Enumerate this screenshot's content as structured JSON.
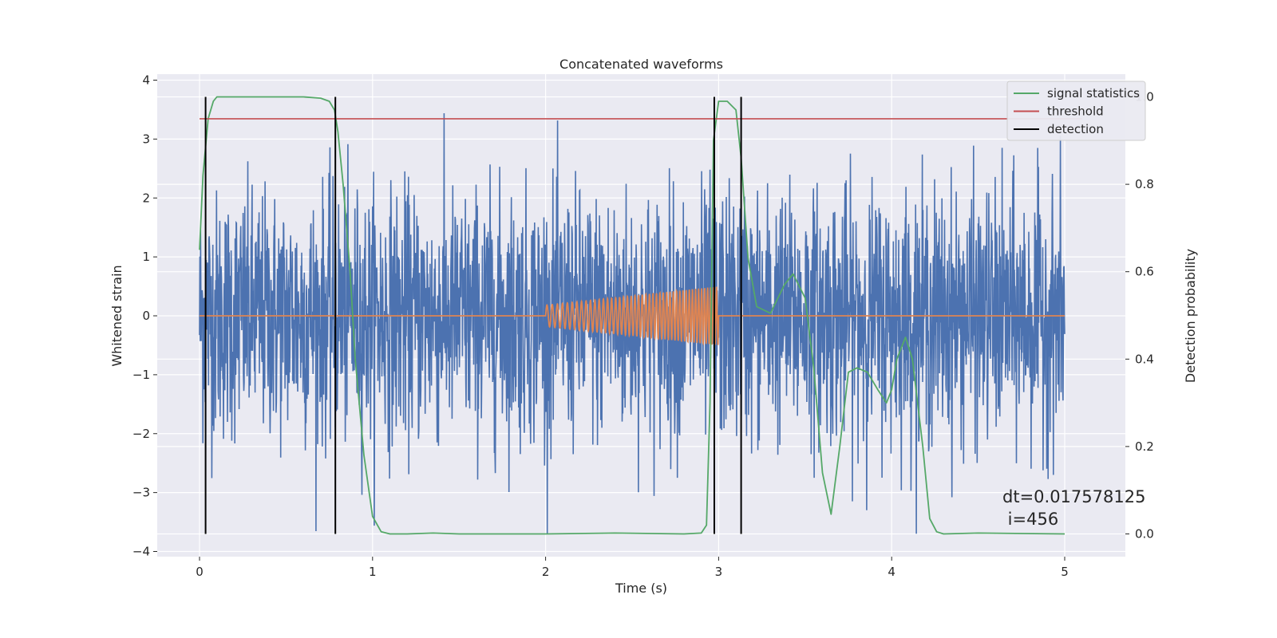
{
  "chart_data": {
    "type": "line",
    "title": "Concatenated waveforms",
    "xlabel": "Time (s)",
    "ylabel_left": "Whitened strain",
    "ylabel_right": "Detection probability",
    "xlim": [
      -0.25,
      5.35
    ],
    "ylim_left": [
      -4.05,
      4.05
    ],
    "ylim_right": [
      -0.045,
      1.045
    ],
    "x_ticks": [
      0,
      1,
      2,
      3,
      4,
      5
    ],
    "y_ticks_left": [
      -4,
      -3,
      -2,
      -1,
      0,
      1,
      2,
      3,
      4
    ],
    "y_ticks_right": [
      0.0,
      0.2,
      0.4,
      0.6,
      0.8,
      1.0
    ],
    "y_tick_labels_left": [
      "−4",
      "−3",
      "−2",
      "−1",
      "0",
      "1",
      "2",
      "3",
      "4"
    ],
    "y_tick_labels_right": [
      "0.0",
      "0.2",
      "0.4",
      "0.6",
      "0.8",
      "1.0"
    ],
    "grid": true,
    "legend_position": "top-right",
    "legend": [
      "signal statistics",
      "threshold",
      "detection"
    ],
    "series": [
      {
        "name": "strain",
        "axis": "left",
        "color": "#4c72b0",
        "description_range": [
          0,
          5
        ],
        "approx_extent": [
          -3.7,
          3.45
        ]
      },
      {
        "name": "injection",
        "axis": "left",
        "color": "#dd8452",
        "segments": [
          [
            0,
            2,
            0
          ],
          [
            2,
            3,
            0
          ],
          [
            3,
            5,
            0
          ]
        ],
        "chirp": {
          "start": 2.0,
          "end": 3.0,
          "amp_start": 0.18,
          "amp_end": 0.5
        }
      },
      {
        "name": "signal statistics",
        "axis": "right",
        "color": "#55a868",
        "x": [
          0.0,
          0.02,
          0.05,
          0.08,
          0.1,
          0.2,
          0.4,
          0.6,
          0.7,
          0.75,
          0.78,
          0.8,
          0.83,
          0.87,
          0.9,
          0.95,
          1.0,
          1.05,
          1.1,
          1.2,
          1.35,
          1.5,
          2.0,
          2.4,
          2.8,
          2.9,
          2.93,
          2.95,
          2.97,
          3.0,
          3.05,
          3.1,
          3.13,
          3.17,
          3.22,
          3.3,
          3.38,
          3.43,
          3.5,
          3.55,
          3.6,
          3.65,
          3.7,
          3.75,
          3.8,
          3.86,
          3.92,
          3.97,
          4.0,
          4.03,
          4.08,
          4.12,
          4.18,
          4.22,
          4.26,
          4.3,
          4.5,
          5.0
        ],
        "values": [
          0.65,
          0.82,
          0.95,
          0.99,
          1.0,
          1.0,
          1.0,
          1.0,
          0.997,
          0.99,
          0.97,
          0.92,
          0.8,
          0.6,
          0.4,
          0.18,
          0.04,
          0.005,
          0.0,
          0.0,
          0.002,
          0.0,
          0.0,
          0.002,
          0.0,
          0.002,
          0.02,
          0.3,
          0.9,
          0.99,
          0.99,
          0.97,
          0.86,
          0.63,
          0.52,
          0.505,
          0.57,
          0.595,
          0.54,
          0.38,
          0.14,
          0.045,
          0.2,
          0.37,
          0.38,
          0.37,
          0.33,
          0.3,
          0.33,
          0.4,
          0.45,
          0.4,
          0.2,
          0.035,
          0.005,
          0.0,
          0.002,
          0.0
        ]
      },
      {
        "name": "threshold",
        "axis": "right",
        "color": "#c44e52",
        "x": [
          0,
          5.1
        ],
        "values": [
          0.95,
          0.95
        ]
      },
      {
        "name": "detection",
        "axis": "right",
        "color": "#000000",
        "x_positions": [
          0.035,
          0.785,
          2.975,
          3.13
        ],
        "y_range": [
          0,
          1
        ]
      }
    ],
    "annotation": [
      "dt=0.017578125",
      " i=456"
    ]
  }
}
